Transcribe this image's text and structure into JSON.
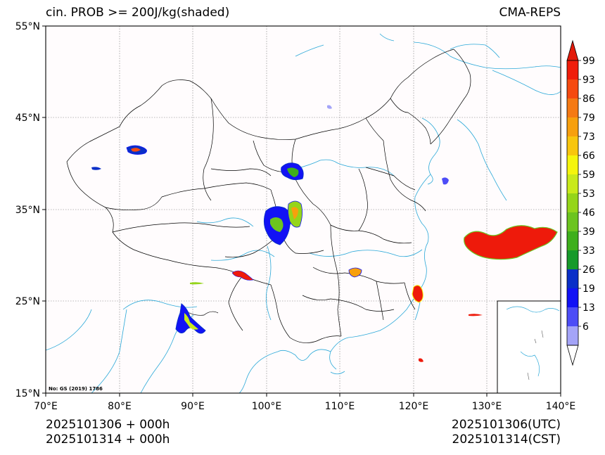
{
  "title_left": "cin. PROB >= 200J/kg(shaded)",
  "title_right": "CMA-REPS",
  "footer": {
    "left_line1": "2025101306  +  000h",
    "left_line2": "2025101314  +  000h",
    "right_line1": "2025101306(UTC)",
    "right_line2": "2025101314(CST)"
  },
  "credit": "No: GS (2019) 1786",
  "map": {
    "lon_range": [
      70,
      140
    ],
    "lat_range": [
      15,
      55
    ],
    "lon_ticks": [
      "70°E",
      "80°E",
      "90°E",
      "100°E",
      "110°E",
      "120°E",
      "130°E",
      "140°E"
    ],
    "lat_ticks": [
      "55°N",
      "45°N",
      "35°N",
      "25°N",
      "15°N"
    ],
    "gridlines": true
  },
  "colorbar": {
    "labels": [
      "99",
      "93",
      "86",
      "79",
      "73",
      "66",
      "59",
      "53",
      "46",
      "39",
      "33",
      "26",
      "19",
      "13",
      "6"
    ],
    "colors": [
      "#f01d0b",
      "#f54a10",
      "#f57a14",
      "#f7a00d",
      "#f8c60d",
      "#f5f50c",
      "#c9ea1b",
      "#95d51a",
      "#6cc41f",
      "#3eaf1c",
      "#169a2a",
      "#0a2fc8",
      "#1212f5",
      "#4d4df7",
      "#a4a4f8"
    ],
    "triangle_top_color": "#e31a0a",
    "triangle_bottom_color": "#ffffff"
  },
  "colors": {
    "coast": "#2aa8d8",
    "border": "#000000",
    "grid": "#555555"
  }
}
